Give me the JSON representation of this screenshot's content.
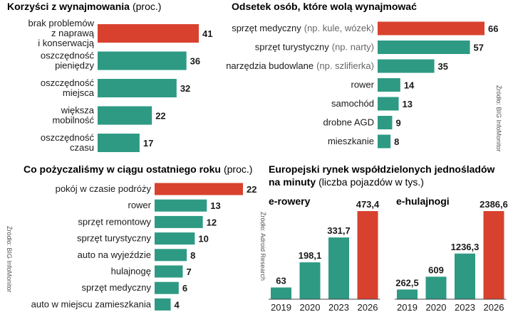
{
  "colors": {
    "accent": "#d9412f",
    "main": "#2e9a84",
    "text": "#1a1a1a",
    "source": "#555555"
  },
  "chart_data": [
    {
      "id": "benefits",
      "type": "bar",
      "orientation": "horizontal",
      "title": "Korzyści z wynajmowania",
      "unit": "(proc.)",
      "categories": [
        [
          "brak problemów",
          "z naprawą",
          "i konserwacją"
        ],
        [
          "oszczędność",
          "pieniędzy"
        ],
        [
          "oszczędność",
          "miejsca"
        ],
        [
          "większa",
          "mobilność"
        ],
        [
          "oszczędność",
          "czasu"
        ]
      ],
      "values": [
        41,
        36,
        32,
        22,
        17
      ],
      "value_labels": [
        "41",
        "36",
        "32",
        "22",
        "17"
      ],
      "highlight_index": 0,
      "xlim": [
        0,
        41
      ]
    },
    {
      "id": "prefer-rent",
      "type": "bar",
      "orientation": "horizontal",
      "title": "Odsetek osób, które wolą wynajmować",
      "unit": "",
      "categories": [
        [
          "sprzęt medyczny",
          "(np. kule, wózek)"
        ],
        [
          "sprzęt turystyczny",
          "(np. narty)"
        ],
        [
          "narzędzia budowlane",
          "(np. szlifierka)"
        ],
        [
          "rower",
          ""
        ],
        [
          "samochód",
          ""
        ],
        [
          "drobne AGD",
          ""
        ],
        [
          "mieszkanie",
          ""
        ]
      ],
      "values": [
        66,
        57,
        35,
        14,
        13,
        9,
        8
      ],
      "value_labels": [
        "66",
        "57",
        "35",
        "14",
        "13",
        "9",
        "8"
      ],
      "highlight_index": 0,
      "xlim": [
        0,
        66
      ],
      "source": "Źródło: BIG InfoMonitor"
    },
    {
      "id": "borrowed",
      "type": "bar",
      "orientation": "horizontal",
      "title": "Co pożyczaliśmy w ciągu ostatniego roku",
      "unit": "(proc.)",
      "categories": [
        "pokój w czasie podróży",
        "rower",
        "sprzęt remontowy",
        "sprzęt turystyczny",
        "auto na wyjeździe",
        "hulajnogę",
        "sprzęt medyczny",
        "auto w miejscu zamieszkania"
      ],
      "values": [
        22,
        13,
        12,
        10,
        8,
        7,
        6,
        4
      ],
      "value_labels": [
        "22",
        "13",
        "12",
        "10",
        "8",
        "7",
        "6",
        "4"
      ],
      "highlight_index": 0,
      "xlim": [
        0,
        22
      ],
      "source": "Źródło: BIG InfoMonitor"
    },
    {
      "id": "ebikes",
      "type": "bar",
      "orientation": "vertical",
      "title": "Europejski rynek współdzielonych jednośladów na minuty",
      "title_lines": [
        "Europejski rynek współdzielonych jednośladów",
        "na minuty"
      ],
      "unit": "(liczba pojazdów w tys.)",
      "subtitle": "e-rowery",
      "categories": [
        "2019",
        "2020",
        "2023",
        "2026"
      ],
      "values": [
        63,
        198.1,
        331.7,
        473.4
      ],
      "value_labels": [
        "63",
        "198,1",
        "331,7",
        "473,4"
      ],
      "highlight_index": 3,
      "ylim": [
        0,
        473.4
      ],
      "source": "Źródło: Adroid Research"
    },
    {
      "id": "escooters",
      "type": "bar",
      "orientation": "vertical",
      "subtitle": "e-hulajnogi",
      "categories": [
        "2019",
        "2020",
        "2023",
        "2026"
      ],
      "values": [
        262.5,
        609,
        1236.3,
        2386.6
      ],
      "value_labels": [
        "262,5",
        "609",
        "1236,3",
        "2386,6"
      ],
      "highlight_index": 3,
      "ylim": [
        0,
        2386.6
      ]
    }
  ]
}
